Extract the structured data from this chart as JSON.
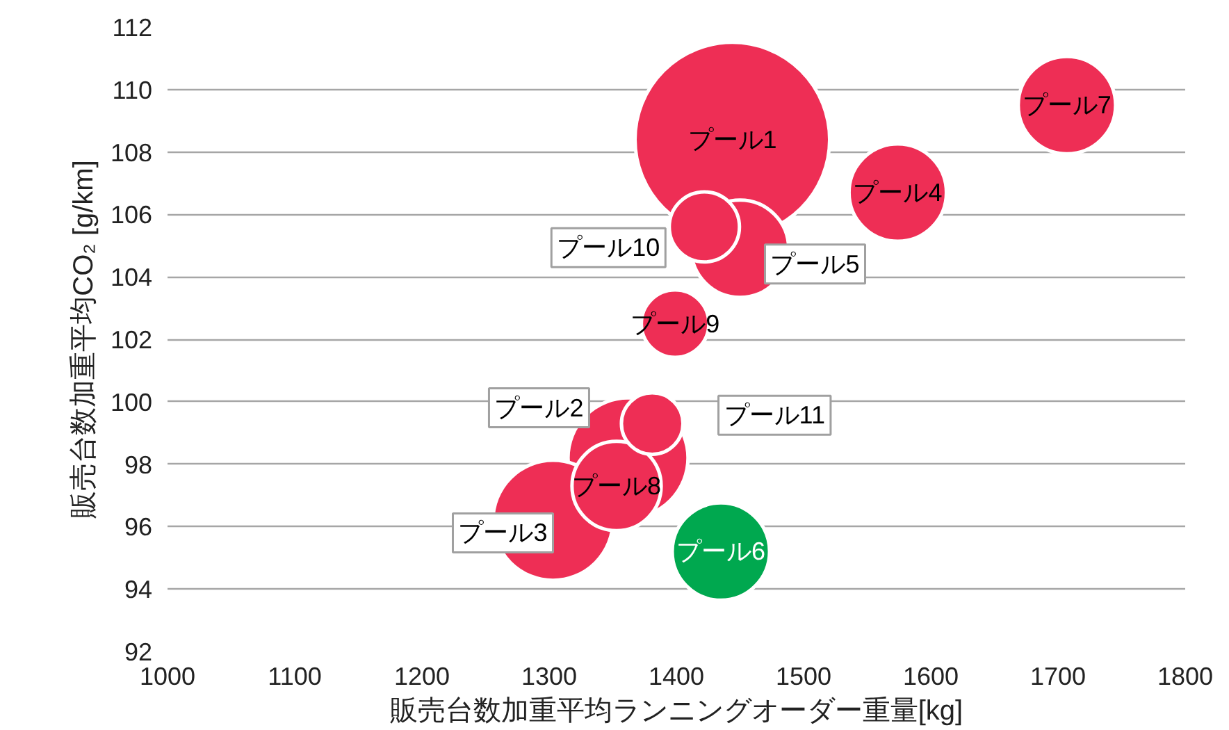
{
  "chart_data": {
    "type": "bubble",
    "xlabel": "販売台数加重平均ランニングオーダー重量[kg]",
    "ylabel": "販売台数加重平均CO₂ [g/km]",
    "xlim": [
      1000,
      1800
    ],
    "xticks": [
      1000,
      1100,
      1200,
      1300,
      1400,
      1500,
      1600,
      1700,
      1800
    ],
    "ylim": [
      92,
      112
    ],
    "yticks": [
      92,
      94,
      96,
      98,
      100,
      102,
      104,
      106,
      108,
      110,
      112
    ],
    "grid": "y",
    "series": [
      {
        "name": "プール1",
        "color": "#ee2e55",
        "x": [
          1444
        ],
        "values": [
          108.4
        ],
        "sizes": [
          1
        ]
      },
      {
        "name": "プール2",
        "color": "#ee2e55",
        "x": [
          1362
        ],
        "values": [
          98.2
        ],
        "sizes": [
          0.38
        ]
      },
      {
        "name": "プール3",
        "color": "#ee2e55",
        "x": [
          1303
        ],
        "values": [
          96.2
        ],
        "sizes": [
          0.38
        ]
      },
      {
        "name": "プール4",
        "color": "#ee2e55",
        "x": [
          1574
        ],
        "values": [
          106.7
        ],
        "sizes": [
          0.25
        ]
      },
      {
        "name": "プール5",
        "color": "#ee2e55",
        "x": [
          1450
        ],
        "values": [
          104.9
        ],
        "sizes": [
          0.25
        ]
      },
      {
        "name": "プール6",
        "color": "#00a84f",
        "x": [
          1435
        ],
        "values": [
          95.2
        ],
        "sizes": [
          0.25
        ]
      },
      {
        "name": "プール7",
        "color": "#ee2e55",
        "x": [
          1707
        ],
        "values": [
          109.5
        ],
        "sizes": [
          0.25
        ]
      },
      {
        "name": "プール8",
        "color": "#ee2e55",
        "x": [
          1353
        ],
        "values": [
          97.3
        ],
        "sizes": [
          0.21
        ]
      },
      {
        "name": "プール9",
        "color": "#ee2e55",
        "x": [
          1399
        ],
        "values": [
          102.5
        ],
        "sizes": [
          0.12
        ]
      },
      {
        "name": "プール10",
        "color": "#ee2e55",
        "x": [
          1422
        ],
        "values": [
          105.6
        ],
        "sizes": [
          0.13
        ]
      },
      {
        "name": "プール11",
        "color": "#ee2e55",
        "x": [
          1381
        ],
        "values": [
          99.3
        ],
        "sizes": [
          0.1
        ]
      }
    ]
  }
}
